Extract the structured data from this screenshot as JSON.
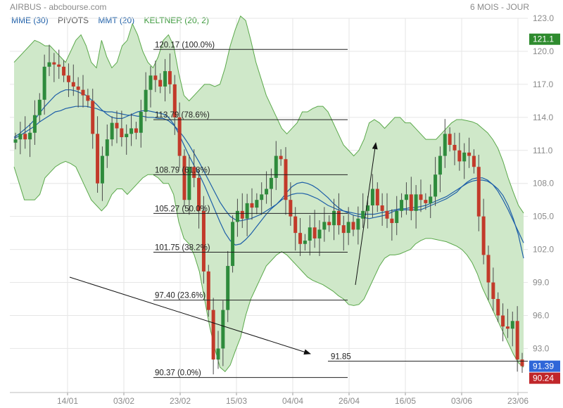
{
  "header": {
    "title": "AIRBUS - abcbourse.com",
    "period": "6 MOIS - JOUR"
  },
  "legend": [
    {
      "label": "MME (30)",
      "color": "#1e5fa8"
    },
    {
      "label": "PIVOTS",
      "color": "#555555"
    },
    {
      "label": "MMT (20)",
      "color": "#1e5fa8"
    },
    {
      "label": "KELTNER (20, 2)",
      "color": "#3e9a3e"
    }
  ],
  "chart_data": {
    "type": "candlestick",
    "ylim": [
      89,
      123
    ],
    "y_ticks": [
      "123.0",
      "120.0",
      "117.0",
      "114.0",
      "111.0",
      "108.0",
      "105.0",
      "102.0",
      "99.0",
      "96.0",
      "93.0"
    ],
    "x_ticks": [
      "14/01",
      "03/02",
      "23/02",
      "15/03",
      "04/04",
      "26/04",
      "16/05",
      "03/06",
      "23/06"
    ],
    "fibonacci": [
      {
        "label": "120.17  (100.0%)",
        "value": 120.17
      },
      {
        "label": "113.79  (78.6%)",
        "value": 113.79
      },
      {
        "label": "108.79  (61.8%)",
        "value": 108.79
      },
      {
        "label": "105.27  (50.0%)",
        "value": 105.27
      },
      {
        "label": "101.75  (38.2%)",
        "value": 101.75
      },
      {
        "label": "97.40  (23.6%)",
        "value": 97.4
      },
      {
        "label": "90.37  (0.0%)",
        "value": 90.37
      }
    ],
    "support": {
      "label": "91.85",
      "value": 91.85
    },
    "price_badges": [
      {
        "label": "121.1",
        "value": 121.1,
        "color": "#2e8b2e"
      },
      {
        "label": "91.39",
        "value": 91.39,
        "color": "#2f66d8"
      },
      {
        "label": "90.24",
        "value": 90.24,
        "color": "#c0262a"
      }
    ],
    "closes": [
      112.0,
      112.5,
      112.0,
      112.6,
      114.2,
      115.6,
      118.6,
      119.0,
      118.8,
      118.6,
      117.8,
      117.2,
      116.8,
      116.5,
      116.0,
      115.5,
      112.5,
      108.0,
      110.5,
      112.0,
      113.5,
      113.0,
      112.2,
      112.5,
      113.0,
      112.6,
      114.5,
      116.5,
      117.8,
      117.4,
      116.8,
      118.2,
      117.0,
      114.0,
      110.5,
      106.5,
      109.5,
      108.5,
      105.5,
      100.0,
      96.5,
      92.0,
      93.0,
      96.5,
      100.5,
      104.5,
      105.5,
      104.8,
      106.2,
      105.8,
      106.5,
      107.0,
      107.5,
      108.5,
      110.5,
      110.2,
      106.5,
      105.0,
      103.5,
      102.5,
      102.8,
      104.0,
      103.0,
      103.8,
      104.5,
      104.2,
      105.5,
      104.2,
      103.5,
      104.5,
      103.8,
      104.8,
      105.5,
      106.0,
      107.5,
      106.0,
      105.5,
      104.8,
      104.4,
      105.5,
      106.5,
      107.0,
      105.5,
      107.0,
      106.5,
      106.2,
      106.8,
      108.8,
      110.5,
      112.5,
      111.5,
      111.0,
      110.0,
      110.8,
      110.5,
      109.5,
      105.0,
      101.5,
      99.0,
      97.5,
      96.0,
      95.0,
      94.8,
      95.5,
      92.0,
      91.39
    ],
    "keltner_upper": [
      119.0,
      119.5,
      120.0,
      120.5,
      121.0,
      120.8,
      120.5,
      120.5,
      120.0,
      119.5,
      119.0,
      120.0,
      121.0,
      121.5,
      120.5,
      119.0,
      118.5,
      121.0,
      119.5,
      118.5,
      119.0,
      120.5,
      121.0,
      122.5,
      121.5,
      120.0,
      119.0,
      118.5,
      119.5,
      121.0,
      121.5,
      120.5,
      118.0,
      116.0,
      115.5,
      116.0,
      116.5,
      117.0,
      117.0,
      116.8,
      117.0,
      118.5,
      120.5,
      122.0,
      123.2,
      122.8,
      121.0,
      119.0,
      117.5,
      116.0,
      115.0,
      114.0,
      113.0,
      112.5,
      113.0,
      113.5,
      114.5,
      114.5,
      114.8,
      115.0,
      115.0,
      114.5,
      113.5,
      112.5,
      111.5,
      111.0,
      110.5,
      111.0,
      112.0,
      113.5,
      113.8,
      113.5,
      113.0,
      113.5,
      114.0,
      114.0,
      113.5,
      113.5,
      113.0,
      112.5,
      112.0,
      112.0,
      112.0,
      112.5,
      113.0,
      113.5,
      113.8,
      113.8,
      113.7,
      113.6,
      113.4,
      113.0,
      112.6,
      112.0,
      111.2,
      110.0,
      108.5,
      107.2,
      106.0,
      105.3
    ],
    "keltner_lower": [
      109.5,
      108.0,
      106.5,
      106.5,
      106.5,
      107.0,
      108.5,
      109.0,
      109.5,
      109.8,
      110.0,
      109.8,
      109.5,
      108.5,
      107.5,
      106.5,
      106.0,
      105.5,
      106.0,
      107.0,
      107.5,
      107.5,
      107.0,
      107.5,
      108.0,
      108.5,
      108.8,
      108.8,
      108.5,
      108.0,
      108.0,
      107.0,
      104.5,
      103.0,
      102.5,
      101.5,
      100.0,
      97.5,
      95.0,
      93.0,
      91.3,
      90.9,
      91.5,
      92.8,
      94.0,
      96.0,
      97.5,
      98.5,
      99.5,
      100.5,
      101.0,
      101.5,
      101.8,
      101.5,
      101.0,
      100.5,
      100.0,
      99.5,
      99.2,
      99.0,
      98.8,
      98.5,
      98.2,
      97.8,
      97.5,
      97.0,
      96.9,
      97.0,
      97.5,
      98.5,
      99.5,
      100.5,
      101.2,
      101.5,
      101.5,
      101.6,
      101.8,
      102.0,
      102.5,
      102.8,
      103.0,
      103.0,
      102.9,
      102.8,
      102.7,
      102.5,
      102.3,
      102.0,
      101.5,
      100.8,
      99.8,
      98.5,
      97.5,
      96.5,
      95.5,
      94.5,
      93.5,
      92.5,
      91.7,
      91.3
    ],
    "mmt_20": [
      112.2,
      112.5,
      112.9,
      113.3,
      113.8,
      114.4,
      115.0,
      115.5,
      116.0,
      116.3,
      116.5,
      116.5,
      116.4,
      116.2,
      116.0,
      115.6,
      115.2,
      114.7,
      114.3,
      114.0,
      113.9,
      113.9,
      114.1,
      114.3,
      114.5,
      114.6,
      114.6,
      114.5,
      114.4,
      114.3,
      114.0,
      113.4,
      112.5,
      111.5,
      110.5,
      109.6,
      108.8,
      107.8,
      106.7,
      105.6,
      104.5,
      103.5,
      102.8,
      102.4,
      102.5,
      102.9,
      103.4,
      104.0,
      104.6,
      105.2,
      105.7,
      106.1,
      106.6,
      107.2,
      107.7,
      108.0,
      108.1,
      108.0,
      107.8,
      107.5,
      107.1,
      106.7,
      106.2,
      105.8,
      105.5,
      105.3,
      105.1,
      105.0,
      104.9,
      104.8,
      104.9,
      105.0,
      105.1,
      105.3,
      105.5,
      105.6,
      105.6,
      105.6,
      105.6,
      105.6,
      105.8,
      106.0,
      106.2,
      106.4,
      106.6,
      106.9,
      107.2,
      107.7,
      108.1,
      108.4,
      108.5,
      108.5,
      108.3,
      107.9,
      107.3,
      106.5,
      105.6,
      104.6,
      103.6,
      102.6
    ],
    "mme_30": [
      112.1,
      112.3,
      112.6,
      112.9,
      113.2,
      113.6,
      113.9,
      114.2,
      114.5,
      114.6,
      114.8,
      114.9,
      115.0,
      115.0,
      115.0,
      114.9,
      114.8,
      114.6,
      114.5,
      114.5,
      114.4,
      114.3,
      114.2,
      114.2,
      114.1,
      114.1,
      114.0,
      114.0,
      113.9,
      113.9,
      113.7,
      113.3,
      112.8,
      112.2,
      111.5,
      110.7,
      109.9,
      109.0,
      108.1,
      107.2,
      106.3,
      105.6,
      105.0,
      104.7,
      104.6,
      104.7,
      104.8,
      105.0,
      105.2,
      105.5,
      105.8,
      106.1,
      106.5,
      106.8,
      107.0,
      107.1,
      107.1,
      107.0,
      106.8,
      106.6,
      106.3,
      106.0,
      105.8,
      105.6,
      105.5,
      105.4,
      105.3,
      105.2,
      105.2,
      105.2,
      105.2,
      105.3,
      105.4,
      105.5,
      105.6,
      105.7,
      105.7,
      105.8,
      105.8,
      105.9,
      106.0,
      106.2,
      106.4,
      106.6,
      106.8,
      107.1,
      107.4,
      107.7,
      108.0,
      108.2,
      108.3,
      108.3,
      108.2,
      107.9,
      107.5,
      106.9,
      106.0,
      104.8,
      103.3,
      101.2
    ]
  }
}
